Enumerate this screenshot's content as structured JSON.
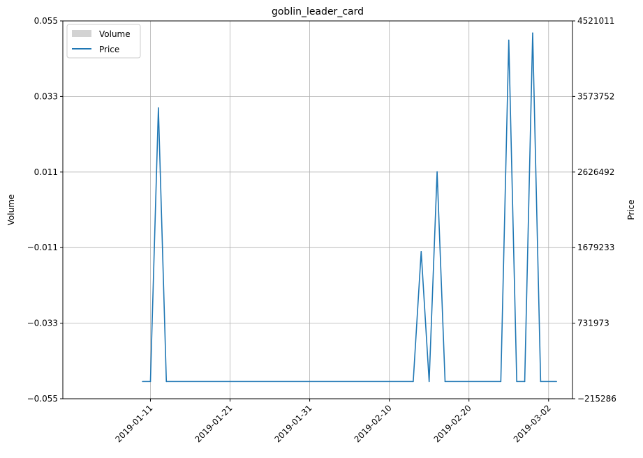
{
  "chart_data": {
    "type": "line",
    "title": "goblin_leader_card",
    "ylabel_left": "Volume",
    "ylabel_right": "Price",
    "grid": true,
    "legend_placement": "top-left",
    "left_axis": {
      "ylim": [
        -0.055,
        0.055
      ],
      "ticks": [
        -0.055,
        -0.033,
        -0.011,
        0.011,
        0.033,
        0.055
      ],
      "tick_labels": [
        "−0.055",
        "−0.033",
        "−0.011",
        "0.011",
        "0.033",
        "0.055"
      ]
    },
    "right_axis": {
      "ylim": [
        -215286,
        4521011
      ],
      "ticks": [
        -215286,
        731973,
        1679233,
        2626492,
        3573752,
        4521011
      ],
      "tick_labels": [
        "−215286",
        "731973",
        "1679233",
        "2626492",
        "3573752",
        "4521011"
      ]
    },
    "x_axis": {
      "range": [
        "2018-12-31",
        "2019-03-05"
      ],
      "ticks": [
        "2019-01-11",
        "2019-01-21",
        "2019-01-31",
        "2019-02-10",
        "2019-02-20",
        "2019-03-02"
      ],
      "tick_labels": [
        "2019-01-11",
        "2019-01-21",
        "2019-01-31",
        "2019-02-10",
        "2019-02-20",
        "2019-03-02"
      ]
    },
    "legend": [
      {
        "name": "Volume",
        "color": "#d3d3d3",
        "kind": "bar"
      },
      {
        "name": "Price",
        "color": "#1f77b4",
        "kind": "line"
      }
    ],
    "series": [
      {
        "name": "Price",
        "axis": "right",
        "color": "#1f77b4",
        "points": [
          {
            "x": "2019-01-10",
            "y": 0
          },
          {
            "x": "2019-01-11",
            "y": 0
          },
          {
            "x": "2019-01-12",
            "y": 3430000
          },
          {
            "x": "2019-01-13",
            "y": 0
          },
          {
            "x": "2019-02-13",
            "y": 0
          },
          {
            "x": "2019-02-14",
            "y": 1630000
          },
          {
            "x": "2019-02-15",
            "y": 0
          },
          {
            "x": "2019-02-16",
            "y": 2630000
          },
          {
            "x": "2019-02-17",
            "y": 0
          },
          {
            "x": "2019-02-24",
            "y": 0
          },
          {
            "x": "2019-02-25",
            "y": 4280000
          },
          {
            "x": "2019-02-26",
            "y": 0
          },
          {
            "x": "2019-02-27",
            "y": 0
          },
          {
            "x": "2019-02-28",
            "y": 4370000
          },
          {
            "x": "2019-03-01",
            "y": 0
          },
          {
            "x": "2019-03-03",
            "y": 0
          }
        ]
      }
    ]
  }
}
